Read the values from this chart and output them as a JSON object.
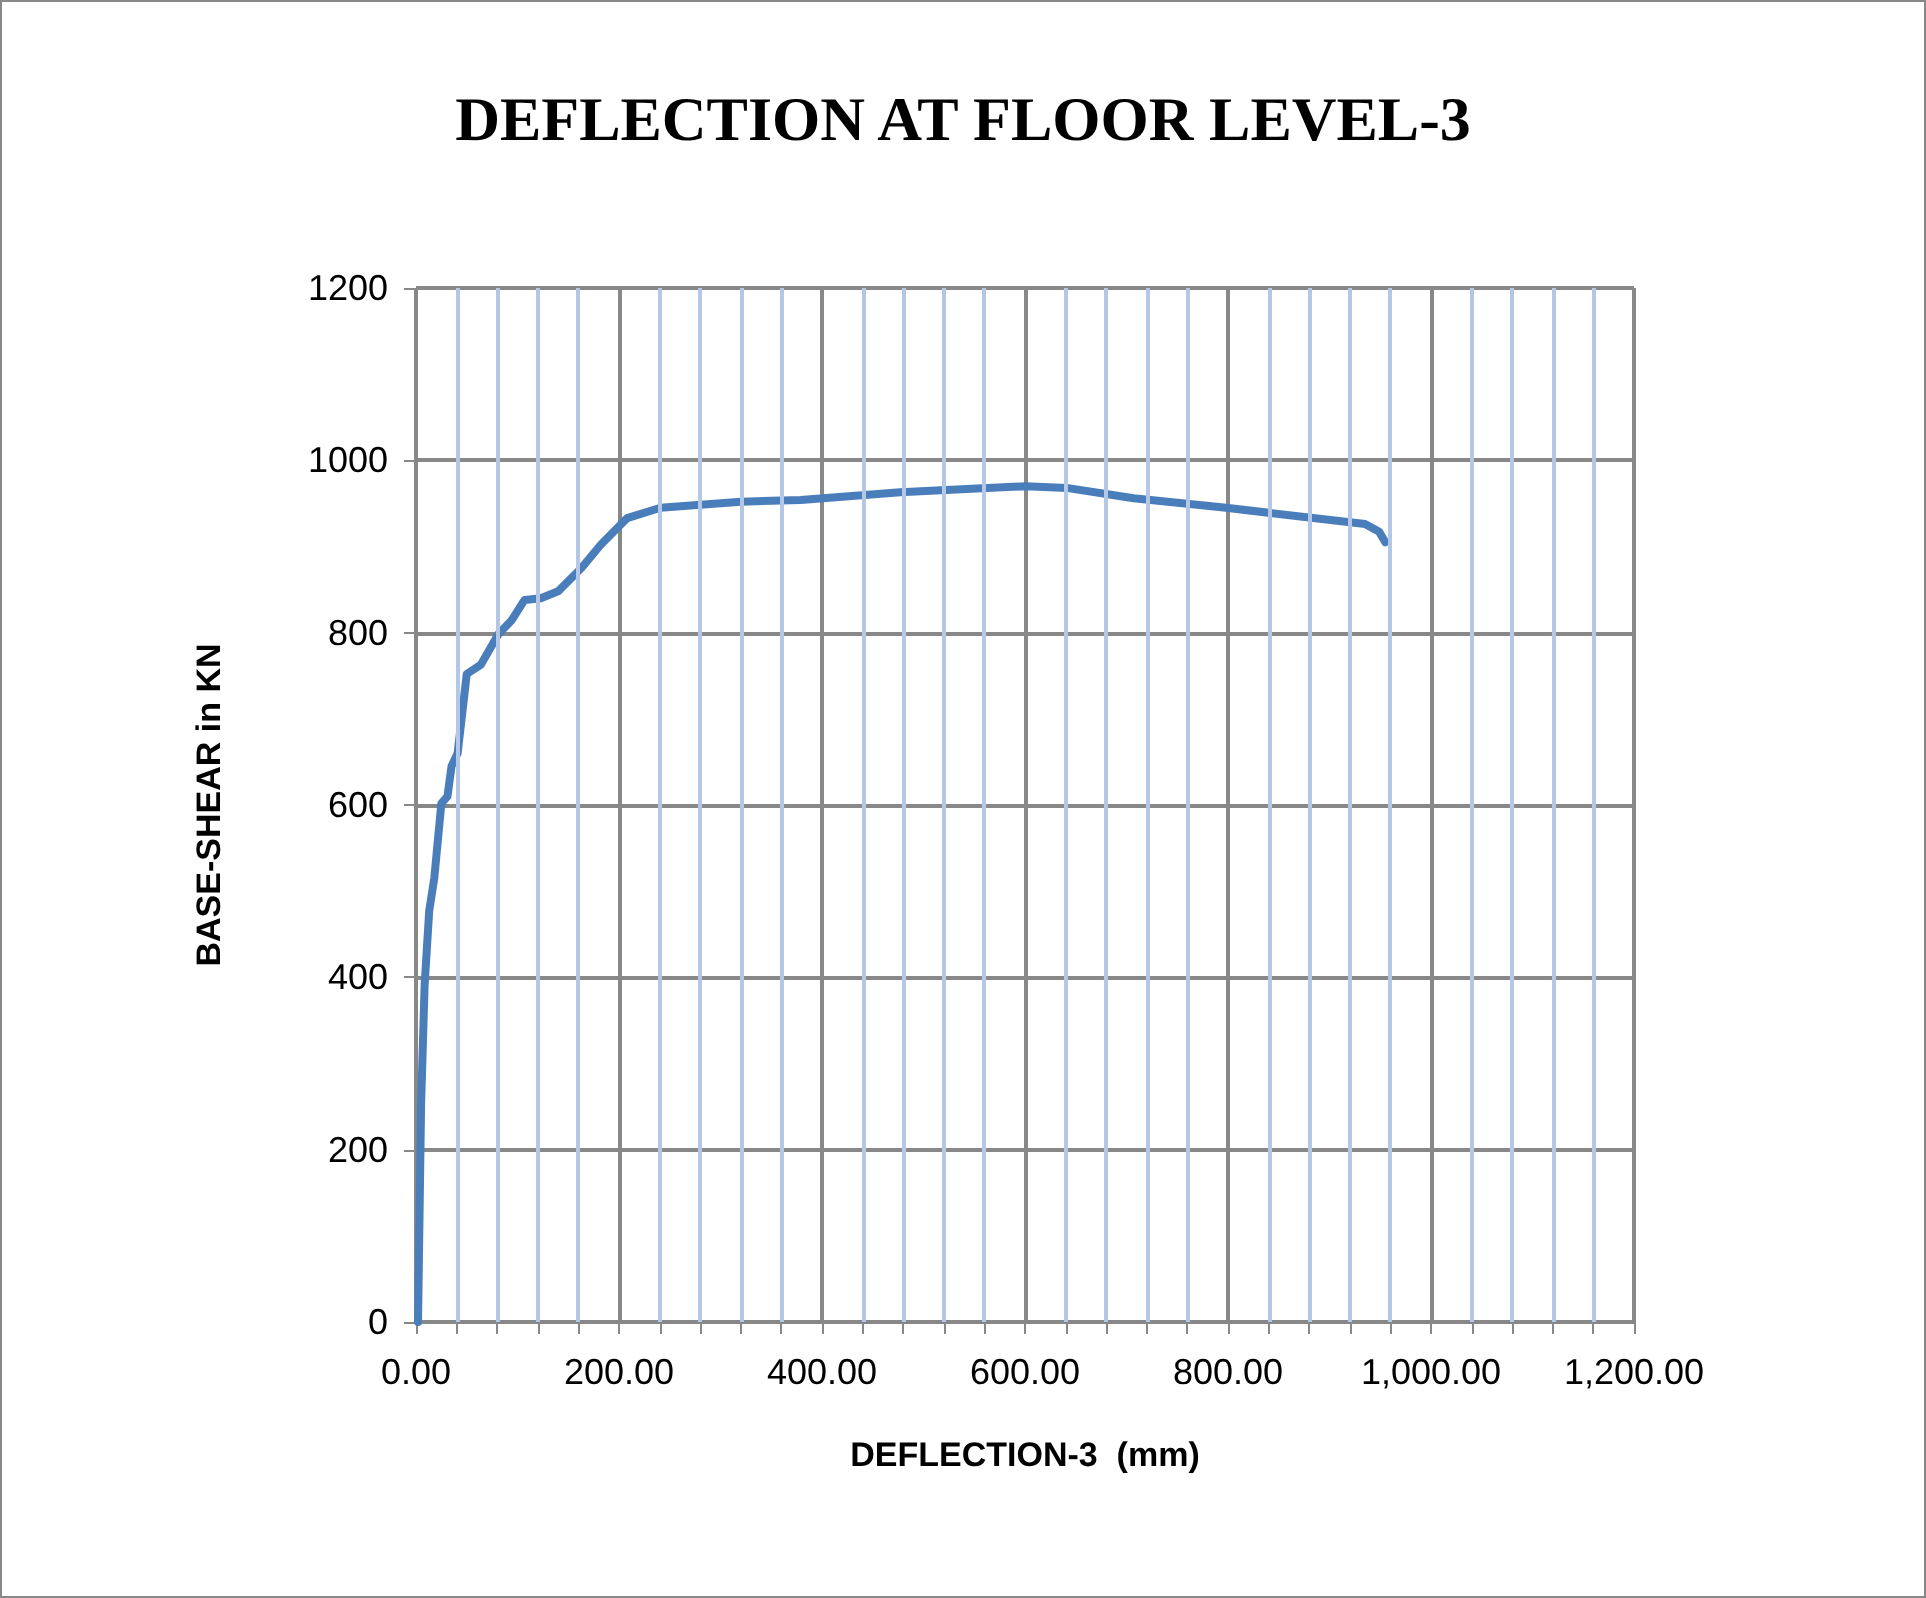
{
  "chart_data": {
    "type": "line",
    "title": "DEFLECTION AT FLOOR LEVEL-3",
    "xlabel": "DEFLECTION-3  (mm)",
    "ylabel": "BASE-SHEAR in KN",
    "x": [
      2,
      5,
      8.5,
      13,
      18,
      25,
      31,
      35,
      41,
      50,
      64,
      81,
      94,
      107,
      123,
      140,
      163,
      182,
      208,
      241,
      320,
      379,
      477,
      601,
      641,
      707,
      798,
      935,
      949,
      955
    ],
    "series": [
      {
        "color": "#4a7ebb",
        "values": [
          0,
          252,
          391,
          477,
          515,
          602,
          610,
          645,
          660,
          752,
          763,
          798,
          814,
          838,
          840,
          848,
          875,
          902,
          933,
          945,
          952,
          954,
          963,
          970,
          968,
          956,
          945,
          926,
          917,
          905
        ]
      }
    ],
    "xlim": [
      0,
      1200
    ],
    "xticks": [
      {
        "value": 0,
        "label": "0.00"
      },
      {
        "value": 40,
        "label": null
      },
      {
        "value": 80,
        "label": null
      },
      {
        "value": 120,
        "label": null
      },
      {
        "value": 160,
        "label": null
      },
      {
        "value": 200,
        "label": "200.00"
      },
      {
        "value": 240,
        "label": null
      },
      {
        "value": 280,
        "label": null
      },
      {
        "value": 320,
        "label": null
      },
      {
        "value": 360,
        "label": null
      },
      {
        "value": 400,
        "label": "400.00"
      },
      {
        "value": 440,
        "label": null
      },
      {
        "value": 480,
        "label": null
      },
      {
        "value": 520,
        "label": null
      },
      {
        "value": 560,
        "label": null
      },
      {
        "value": 600,
        "label": "600.00"
      },
      {
        "value": 640,
        "label": null
      },
      {
        "value": 680,
        "label": null
      },
      {
        "value": 720,
        "label": null
      },
      {
        "value": 760,
        "label": null
      },
      {
        "value": 800,
        "label": "800.00"
      },
      {
        "value": 840,
        "label": null
      },
      {
        "value": 880,
        "label": null
      },
      {
        "value": 920,
        "label": null
      },
      {
        "value": 960,
        "label": null
      },
      {
        "value": 1000,
        "label": "1,000.00"
      },
      {
        "value": 1040,
        "label": null
      },
      {
        "value": 1080,
        "label": null
      },
      {
        "value": 1120,
        "label": null
      },
      {
        "value": 1160,
        "label": null
      },
      {
        "value": 1200,
        "label": "1,200.00"
      }
    ],
    "ylim": [
      0,
      1200
    ],
    "yticks": [
      0,
      200,
      400,
      600,
      800,
      1000,
      1200
    ],
    "grid": true,
    "marker": "none",
    "line_style": "solid"
  }
}
